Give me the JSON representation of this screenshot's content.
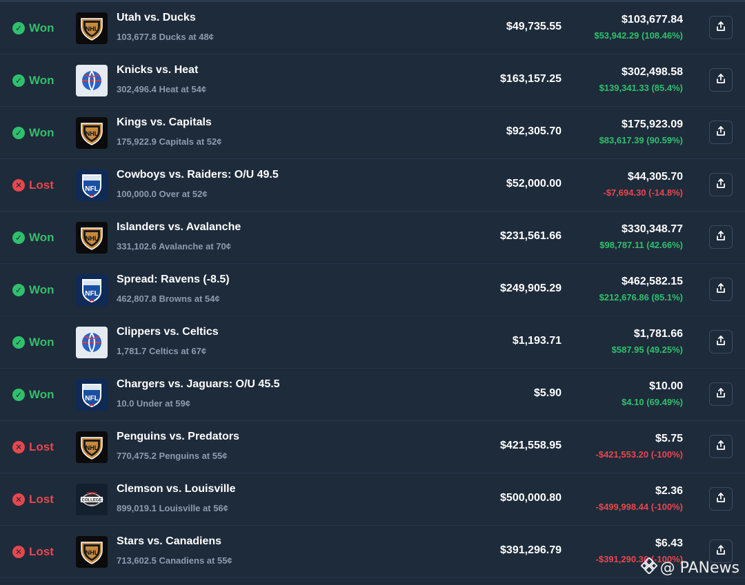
{
  "status_labels": {
    "won": "Won",
    "lost": "Lost"
  },
  "colors": {
    "background": "#1e2b3b",
    "won": "#2fc06b",
    "lost": "#e8474d",
    "muted": "#8d9bb0"
  },
  "bets": [
    {
      "status": "won",
      "league": "nhl",
      "title": "Utah vs. Ducks",
      "subtitle": "103,677.8 Ducks at 48¢",
      "cost": "$49,735.55",
      "value": "$103,677.84",
      "pnl": "$53,942.29 (108.46%)",
      "pnl_dir": "up"
    },
    {
      "status": "won",
      "league": "nba",
      "title": "Knicks vs. Heat",
      "subtitle": "302,496.4 Heat at 54¢",
      "cost": "$163,157.25",
      "value": "$302,498.58",
      "pnl": "$139,341.33 (85.4%)",
      "pnl_dir": "up"
    },
    {
      "status": "won",
      "league": "nhl",
      "title": "Kings vs. Capitals",
      "subtitle": "175,922.9 Capitals at 52¢",
      "cost": "$92,305.70",
      "value": "$175,923.09",
      "pnl": "$83,617.39 (90.59%)",
      "pnl_dir": "up"
    },
    {
      "status": "lost",
      "league": "nfl",
      "title": "Cowboys vs. Raiders: O/U 49.5",
      "subtitle": "100,000.0 Over at 52¢",
      "cost": "$52,000.00",
      "value": "$44,305.70",
      "pnl": "-$7,694.30 (-14.8%)",
      "pnl_dir": "down"
    },
    {
      "status": "won",
      "league": "nhl",
      "title": "Islanders vs. Avalanche",
      "subtitle": "331,102.6 Avalanche at 70¢",
      "cost": "$231,561.66",
      "value": "$330,348.77",
      "pnl": "$98,787.11 (42.66%)",
      "pnl_dir": "up"
    },
    {
      "status": "won",
      "league": "nfl",
      "title": "Spread: Ravens (-8.5)",
      "subtitle": "462,807.8 Browns at 54¢",
      "cost": "$249,905.29",
      "value": "$462,582.15",
      "pnl": "$212,676.86 (85.1%)",
      "pnl_dir": "up"
    },
    {
      "status": "won",
      "league": "nba",
      "title": "Clippers vs. Celtics",
      "subtitle": "1,781.7 Celtics at 67¢",
      "cost": "$1,193.71",
      "value": "$1,781.66",
      "pnl": "$587.95 (49.25%)",
      "pnl_dir": "up"
    },
    {
      "status": "won",
      "league": "nfl",
      "title": "Chargers vs. Jaguars: O/U 45.5",
      "subtitle": "10.0 Under at 59¢",
      "cost": "$5.90",
      "value": "$10.00",
      "pnl": "$4.10 (69.49%)",
      "pnl_dir": "up"
    },
    {
      "status": "lost",
      "league": "nhl",
      "title": "Penguins vs. Predators",
      "subtitle": "770,475.2 Penguins at 55¢",
      "cost": "$421,558.95",
      "value": "$5.75",
      "pnl": "-$421,553.20 (-100%)",
      "pnl_dir": "down"
    },
    {
      "status": "lost",
      "league": "cfb",
      "title": "Clemson vs. Louisville",
      "subtitle": "899,019.1 Louisville at 56¢",
      "cost": "$500,000.80",
      "value": "$2.36",
      "pnl": "-$499,998.44 (-100%)",
      "pnl_dir": "down"
    },
    {
      "status": "lost",
      "league": "nhl",
      "title": "Stars vs. Canadiens",
      "subtitle": "713,602.5 Canadiens at 55¢",
      "cost": "$391,296.79",
      "value": "$6.43",
      "pnl": "-$391,290.36 (-100%)",
      "pnl_dir": "down"
    }
  ],
  "watermark": {
    "text": "@ PANews"
  }
}
